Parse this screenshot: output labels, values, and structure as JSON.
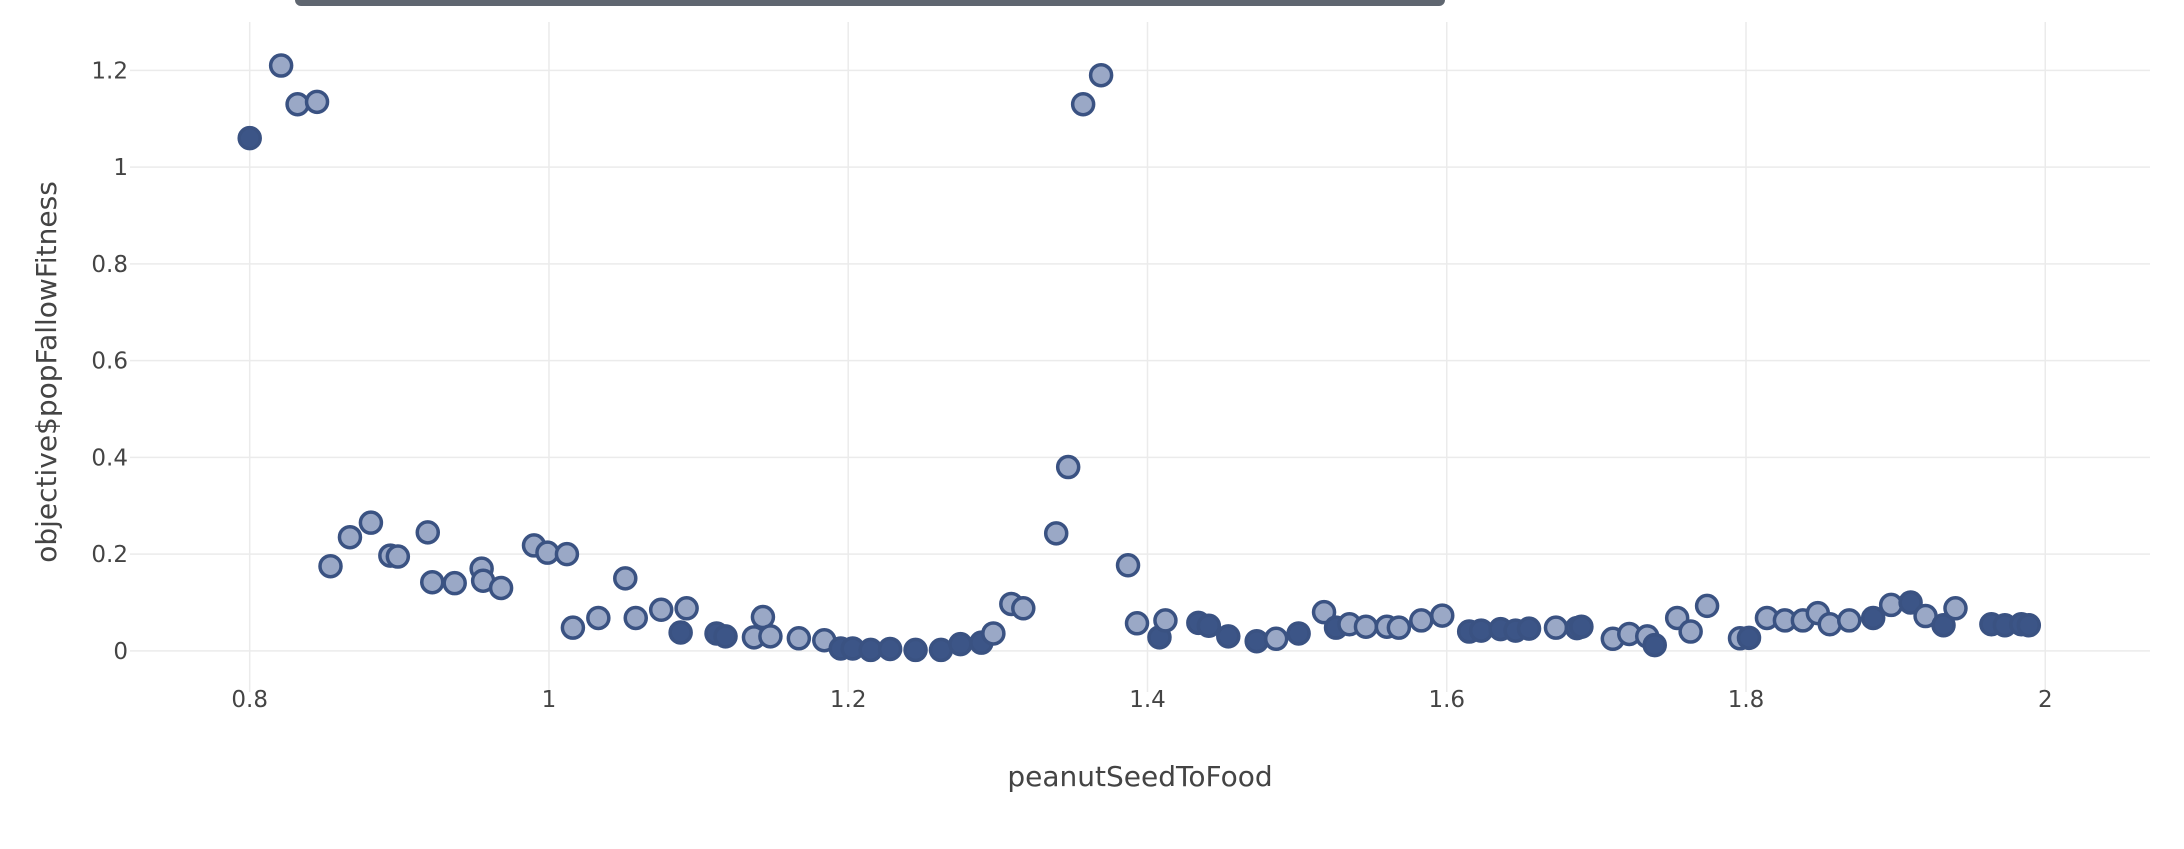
{
  "chart_data": {
    "type": "scatter",
    "title": "",
    "xlabel": "peanutSeedToFood",
    "ylabel": "objective$popFallowFitness",
    "xlim": [
      0.72,
      2.07
    ],
    "ylim": [
      -0.085,
      1.3
    ],
    "x_ticks": [
      0.8,
      1,
      1.2,
      1.4,
      1.6,
      1.8,
      2
    ],
    "x_tick_labels": [
      "0.8",
      "1",
      "1.2",
      "1.4",
      "1.6",
      "1.8",
      "2"
    ],
    "y_ticks": [
      0,
      0.2,
      0.4,
      0.6,
      0.8,
      1,
      1.2
    ],
    "y_tick_labels": [
      "0",
      "0.2",
      "0.4",
      "0.6",
      "0.8",
      "1",
      "1.2"
    ],
    "grid": true,
    "colors": {
      "light_fill": "#9aa8c6",
      "dark_fill": "#3c5587",
      "stroke": "#3a5282",
      "grid": "#ebebeb"
    },
    "points": [
      {
        "x": 0.8,
        "y": 1.06,
        "dark": true
      },
      {
        "x": 0.821,
        "y": 1.21
      },
      {
        "x": 0.832,
        "y": 1.13
      },
      {
        "x": 0.845,
        "y": 1.135
      },
      {
        "x": 0.854,
        "y": 0.175
      },
      {
        "x": 0.867,
        "y": 0.235
      },
      {
        "x": 0.881,
        "y": 0.265
      },
      {
        "x": 0.894,
        "y": 0.197
      },
      {
        "x": 0.899,
        "y": 0.195
      },
      {
        "x": 0.919,
        "y": 0.245
      },
      {
        "x": 0.922,
        "y": 0.142
      },
      {
        "x": 0.937,
        "y": 0.14
      },
      {
        "x": 0.955,
        "y": 0.17
      },
      {
        "x": 0.956,
        "y": 0.145
      },
      {
        "x": 0.968,
        "y": 0.13
      },
      {
        "x": 0.99,
        "y": 0.218
      },
      {
        "x": 0.999,
        "y": 0.203
      },
      {
        "x": 1.012,
        "y": 0.2
      },
      {
        "x": 1.016,
        "y": 0.048
      },
      {
        "x": 1.033,
        "y": 0.068
      },
      {
        "x": 1.051,
        "y": 0.15
      },
      {
        "x": 1.058,
        "y": 0.068
      },
      {
        "x": 1.075,
        "y": 0.085
      },
      {
        "x": 1.088,
        "y": 0.038,
        "dark": true
      },
      {
        "x": 1.092,
        "y": 0.088
      },
      {
        "x": 1.112,
        "y": 0.036,
        "dark": true
      },
      {
        "x": 1.118,
        "y": 0.03,
        "dark": true
      },
      {
        "x": 1.137,
        "y": 0.028
      },
      {
        "x": 1.143,
        "y": 0.07
      },
      {
        "x": 1.148,
        "y": 0.03
      },
      {
        "x": 1.167,
        "y": 0.026
      },
      {
        "x": 1.184,
        "y": 0.022
      },
      {
        "x": 1.195,
        "y": 0.005,
        "dark": true
      },
      {
        "x": 1.203,
        "y": 0.005,
        "dark": true
      },
      {
        "x": 1.215,
        "y": 0.002,
        "dark": true
      },
      {
        "x": 1.228,
        "y": 0.004,
        "dark": true
      },
      {
        "x": 1.245,
        "y": 0.002,
        "dark": true
      },
      {
        "x": 1.262,
        "y": 0.002,
        "dark": true
      },
      {
        "x": 1.275,
        "y": 0.014,
        "dark": true
      },
      {
        "x": 1.289,
        "y": 0.017,
        "dark": true
      },
      {
        "x": 1.297,
        "y": 0.036
      },
      {
        "x": 1.309,
        "y": 0.097
      },
      {
        "x": 1.317,
        "y": 0.088
      },
      {
        "x": 1.339,
        "y": 0.243
      },
      {
        "x": 1.347,
        "y": 0.38
      },
      {
        "x": 1.357,
        "y": 1.13
      },
      {
        "x": 1.369,
        "y": 1.19
      },
      {
        "x": 1.387,
        "y": 0.177
      },
      {
        "x": 1.393,
        "y": 0.057
      },
      {
        "x": 1.408,
        "y": 0.028,
        "dark": true
      },
      {
        "x": 1.412,
        "y": 0.063
      },
      {
        "x": 1.434,
        "y": 0.058,
        "dark": true
      },
      {
        "x": 1.441,
        "y": 0.052,
        "dark": true
      },
      {
        "x": 1.454,
        "y": 0.03,
        "dark": true
      },
      {
        "x": 1.473,
        "y": 0.02,
        "dark": true
      },
      {
        "x": 1.486,
        "y": 0.025
      },
      {
        "x": 1.501,
        "y": 0.036,
        "dark": true
      },
      {
        "x": 1.518,
        "y": 0.08
      },
      {
        "x": 1.526,
        "y": 0.048,
        "dark": true
      },
      {
        "x": 1.535,
        "y": 0.055
      },
      {
        "x": 1.546,
        "y": 0.05
      },
      {
        "x": 1.56,
        "y": 0.05
      },
      {
        "x": 1.568,
        "y": 0.048
      },
      {
        "x": 1.583,
        "y": 0.063
      },
      {
        "x": 1.597,
        "y": 0.073
      },
      {
        "x": 1.615,
        "y": 0.04,
        "dark": true
      },
      {
        "x": 1.623,
        "y": 0.042,
        "dark": true
      },
      {
        "x": 1.636,
        "y": 0.045,
        "dark": true
      },
      {
        "x": 1.646,
        "y": 0.042,
        "dark": true
      },
      {
        "x": 1.655,
        "y": 0.046,
        "dark": true
      },
      {
        "x": 1.673,
        "y": 0.048
      },
      {
        "x": 1.687,
        "y": 0.047,
        "dark": true
      },
      {
        "x": 1.69,
        "y": 0.05,
        "dark": true
      },
      {
        "x": 1.711,
        "y": 0.025
      },
      {
        "x": 1.722,
        "y": 0.035
      },
      {
        "x": 1.734,
        "y": 0.03
      },
      {
        "x": 1.739,
        "y": 0.012,
        "dark": true
      },
      {
        "x": 1.754,
        "y": 0.068
      },
      {
        "x": 1.763,
        "y": 0.04
      },
      {
        "x": 1.774,
        "y": 0.093
      },
      {
        "x": 1.796,
        "y": 0.026
      },
      {
        "x": 1.802,
        "y": 0.027,
        "dark": true
      },
      {
        "x": 1.814,
        "y": 0.068
      },
      {
        "x": 1.826,
        "y": 0.063
      },
      {
        "x": 1.838,
        "y": 0.063
      },
      {
        "x": 1.848,
        "y": 0.078
      },
      {
        "x": 1.856,
        "y": 0.055
      },
      {
        "x": 1.869,
        "y": 0.063
      },
      {
        "x": 1.885,
        "y": 0.068,
        "dark": true
      },
      {
        "x": 1.897,
        "y": 0.095
      },
      {
        "x": 1.91,
        "y": 0.1,
        "dark": true
      },
      {
        "x": 1.92,
        "y": 0.072
      },
      {
        "x": 1.932,
        "y": 0.053,
        "dark": true
      },
      {
        "x": 1.94,
        "y": 0.088
      },
      {
        "x": 1.964,
        "y": 0.055,
        "dark": true
      },
      {
        "x": 1.973,
        "y": 0.053,
        "dark": true
      },
      {
        "x": 1.984,
        "y": 0.055,
        "dark": true
      },
      {
        "x": 1.989,
        "y": 0.053,
        "dark": true
      }
    ]
  }
}
